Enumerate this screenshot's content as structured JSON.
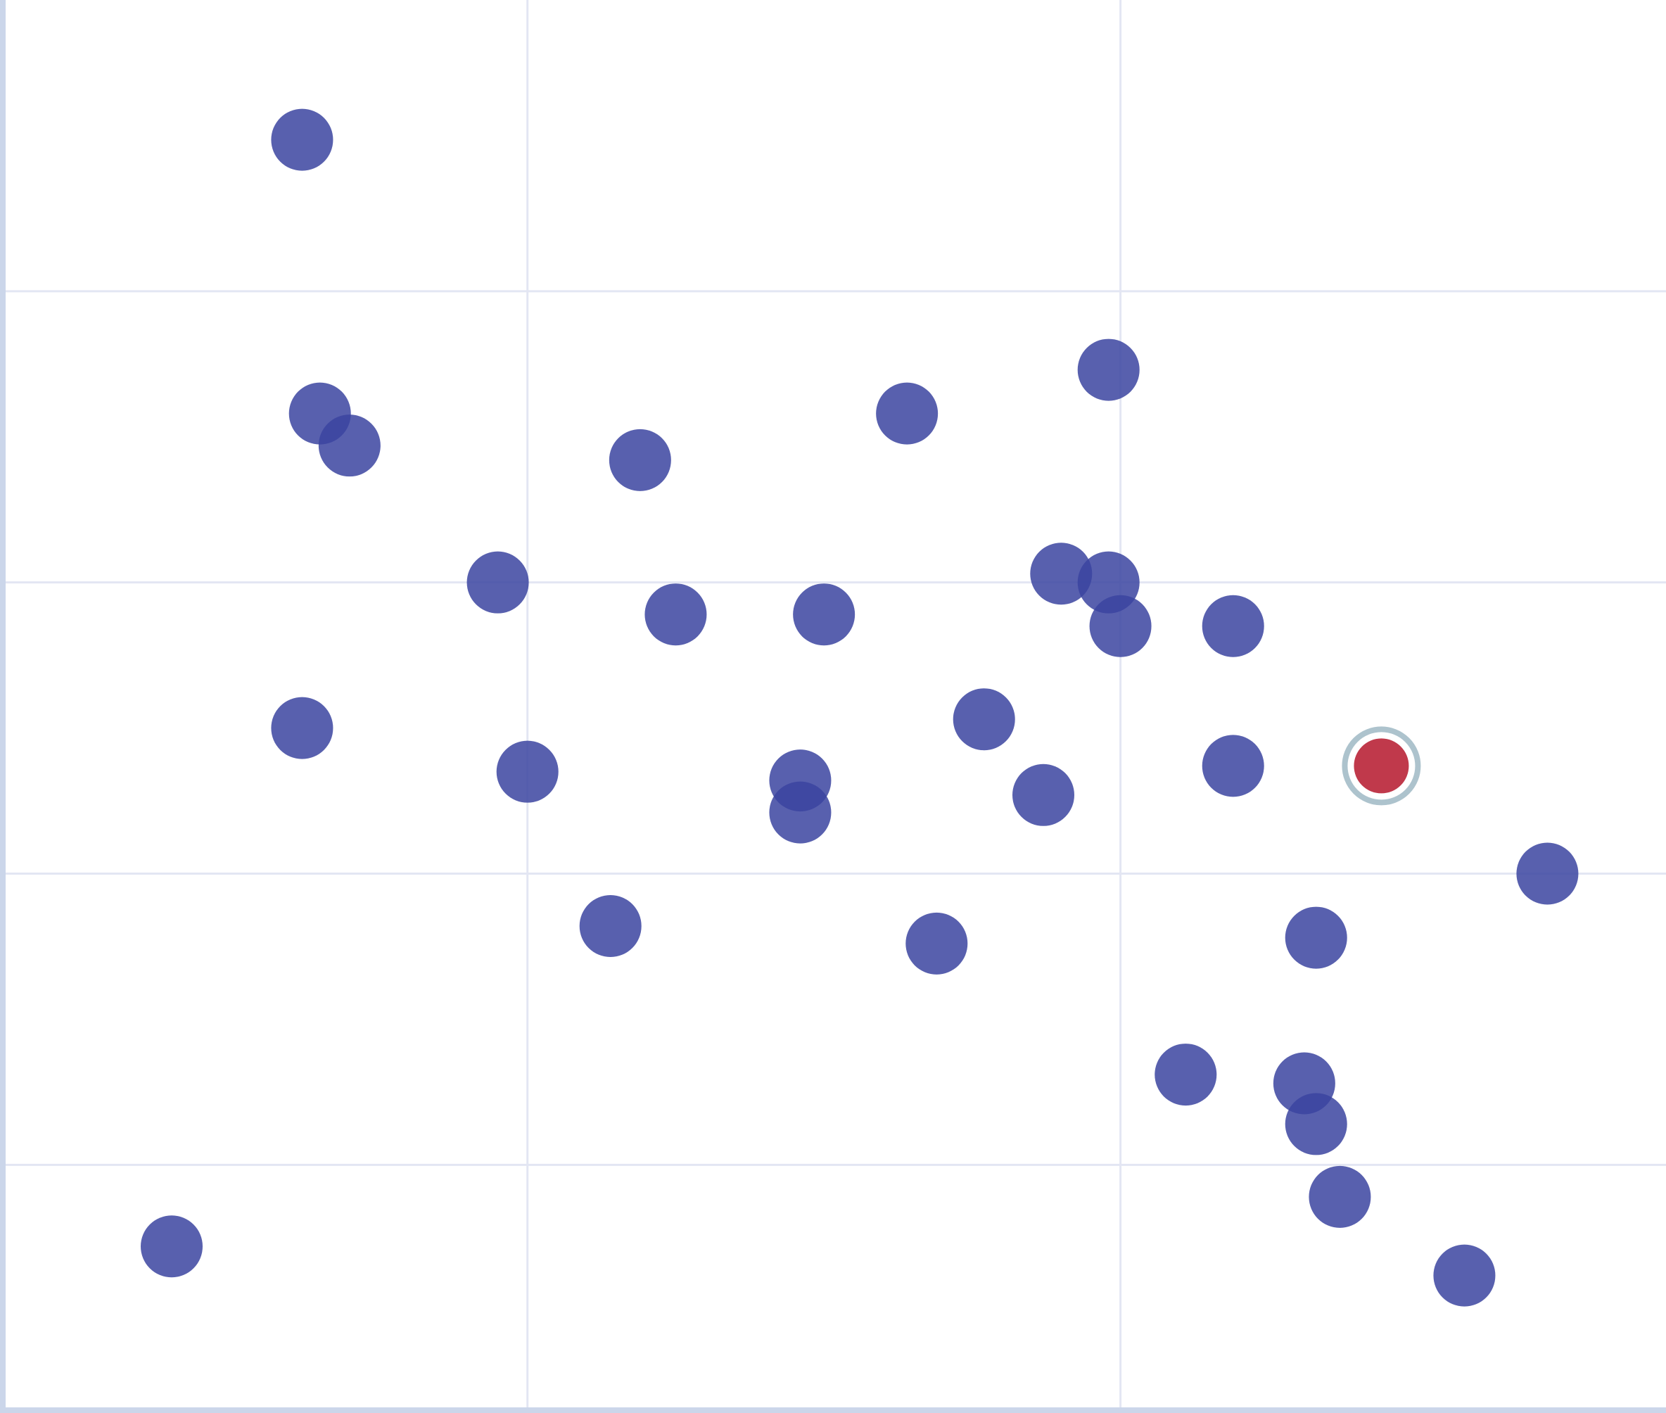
{
  "chart_data": {
    "type": "scatter",
    "title": "",
    "xlabel": "",
    "ylabel": "",
    "xlim": [
      0.12,
      2.92
    ],
    "ylim": [
      0.16,
      5.0
    ],
    "grid": true,
    "x_gridlines": [
      1,
      2
    ],
    "y_gridlines": [
      1,
      2,
      3,
      4
    ],
    "tick_labels_shown": false,
    "legend": "none",
    "colors": {
      "points": "#3b44a0",
      "highlight": "#c0394b",
      "highlight_ring": "#adc3cd",
      "grid": "#e3e6f3",
      "axis": "#cbd6ea"
    },
    "points": [
      {
        "x": 0.62,
        "y": 4.52
      },
      {
        "x": 0.65,
        "y": 3.58
      },
      {
        "x": 0.7,
        "y": 3.47
      },
      {
        "x": 1.19,
        "y": 3.42
      },
      {
        "x": 1.64,
        "y": 3.58
      },
      {
        "x": 1.98,
        "y": 3.73
      },
      {
        "x": 0.95,
        "y": 3.0
      },
      {
        "x": 1.25,
        "y": 2.89
      },
      {
        "x": 1.5,
        "y": 2.89
      },
      {
        "x": 1.9,
        "y": 3.03
      },
      {
        "x": 1.98,
        "y": 3.0
      },
      {
        "x": 2.0,
        "y": 2.85
      },
      {
        "x": 2.19,
        "y": 2.85
      },
      {
        "x": 0.62,
        "y": 2.5
      },
      {
        "x": 1.0,
        "y": 2.35
      },
      {
        "x": 1.46,
        "y": 2.32
      },
      {
        "x": 1.46,
        "y": 2.21
      },
      {
        "x": 1.77,
        "y": 2.53
      },
      {
        "x": 1.87,
        "y": 2.27
      },
      {
        "x": 2.19,
        "y": 2.37
      },
      {
        "x": 2.72,
        "y": 2.0
      },
      {
        "x": 1.14,
        "y": 1.82
      },
      {
        "x": 1.69,
        "y": 1.76
      },
      {
        "x": 2.33,
        "y": 1.78
      },
      {
        "x": 2.11,
        "y": 1.31
      },
      {
        "x": 2.31,
        "y": 1.28
      },
      {
        "x": 2.33,
        "y": 1.14
      },
      {
        "x": 2.37,
        "y": 0.89
      },
      {
        "x": 0.4,
        "y": 0.72
      },
      {
        "x": 2.58,
        "y": 0.62
      }
    ],
    "highlighted_point": {
      "x": 2.44,
      "y": 2.37
    }
  }
}
